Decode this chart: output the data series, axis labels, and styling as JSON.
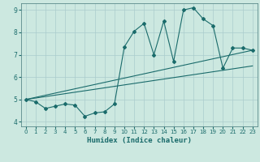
{
  "title": "",
  "xlabel": "Humidex (Indice chaleur)",
  "bg_color": "#cce8e0",
  "grid_color": "#aacccc",
  "line_color": "#1a6b6b",
  "xlim": [
    -0.5,
    23.5
  ],
  "ylim": [
    3.8,
    9.3
  ],
  "yticks": [
    4,
    5,
    6,
    7,
    8,
    9
  ],
  "xticks": [
    0,
    1,
    2,
    3,
    4,
    5,
    6,
    7,
    8,
    9,
    10,
    11,
    12,
    13,
    14,
    15,
    16,
    17,
    18,
    19,
    20,
    21,
    22,
    23
  ],
  "series1_x": [
    0,
    1,
    2,
    3,
    4,
    5,
    6,
    7,
    8,
    9,
    10,
    11,
    12,
    13,
    14,
    15,
    16,
    17,
    18,
    19,
    20,
    21,
    22,
    23
  ],
  "series1_y": [
    5.0,
    4.9,
    4.6,
    4.7,
    4.8,
    4.75,
    4.25,
    4.4,
    4.45,
    4.8,
    7.35,
    8.05,
    8.4,
    7.0,
    8.5,
    6.7,
    9.0,
    9.1,
    8.6,
    8.3,
    6.4,
    7.3,
    7.3,
    7.2
  ],
  "trend1_x": [
    0,
    23
  ],
  "trend1_y": [
    5.0,
    7.2
  ],
  "trend2_x": [
    0,
    23
  ],
  "trend2_y": [
    5.0,
    6.5
  ]
}
